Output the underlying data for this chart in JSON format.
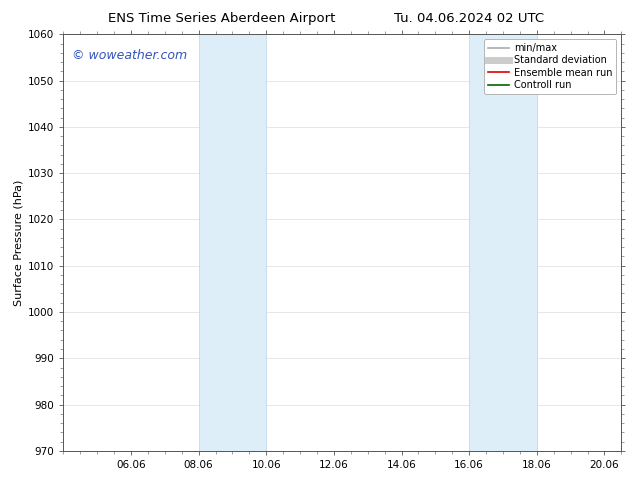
{
  "title": "ENS Time Series Aberdeen Airport",
  "title2": "Tu. 04.06.2024 02 UTC",
  "ylabel": "Surface Pressure (hPa)",
  "ylim": [
    970,
    1060
  ],
  "yticks": [
    970,
    980,
    990,
    1000,
    1010,
    1020,
    1030,
    1040,
    1050,
    1060
  ],
  "xlim": [
    4.06,
    20.56
  ],
  "xticks": [
    6.06,
    8.06,
    10.06,
    12.06,
    14.06,
    16.06,
    18.06,
    20.06
  ],
  "xlabel_labels": [
    "06.06",
    "08.06",
    "10.06",
    "12.06",
    "14.06",
    "16.06",
    "18.06",
    "20.06"
  ],
  "shaded_bands": [
    {
      "x_start": 8.06,
      "x_end": 10.06
    },
    {
      "x_start": 16.06,
      "x_end": 18.06
    }
  ],
  "band_color": "#ddeef8",
  "band_edge_color": "#b8d4e8",
  "watermark": "© woweather.com",
  "watermark_color": "#3355bb",
  "watermark_fontsize": 9,
  "bg_color": "#ffffff",
  "plot_bg_color": "#f8f8f8",
  "grid_color": "#dddddd",
  "title_fontsize": 9.5,
  "axis_label_fontsize": 8,
  "tick_fontsize": 7.5,
  "legend_items": [
    {
      "label": "min/max",
      "color": "#aaaaaa",
      "lw": 1.2,
      "style": "solid"
    },
    {
      "label": "Standard deviation",
      "color": "#cccccc",
      "lw": 5,
      "style": "solid"
    },
    {
      "label": "Ensemble mean run",
      "color": "#dd0000",
      "lw": 1.2,
      "style": "solid"
    },
    {
      "label": "Controll run",
      "color": "#006600",
      "lw": 1.2,
      "style": "solid"
    }
  ]
}
